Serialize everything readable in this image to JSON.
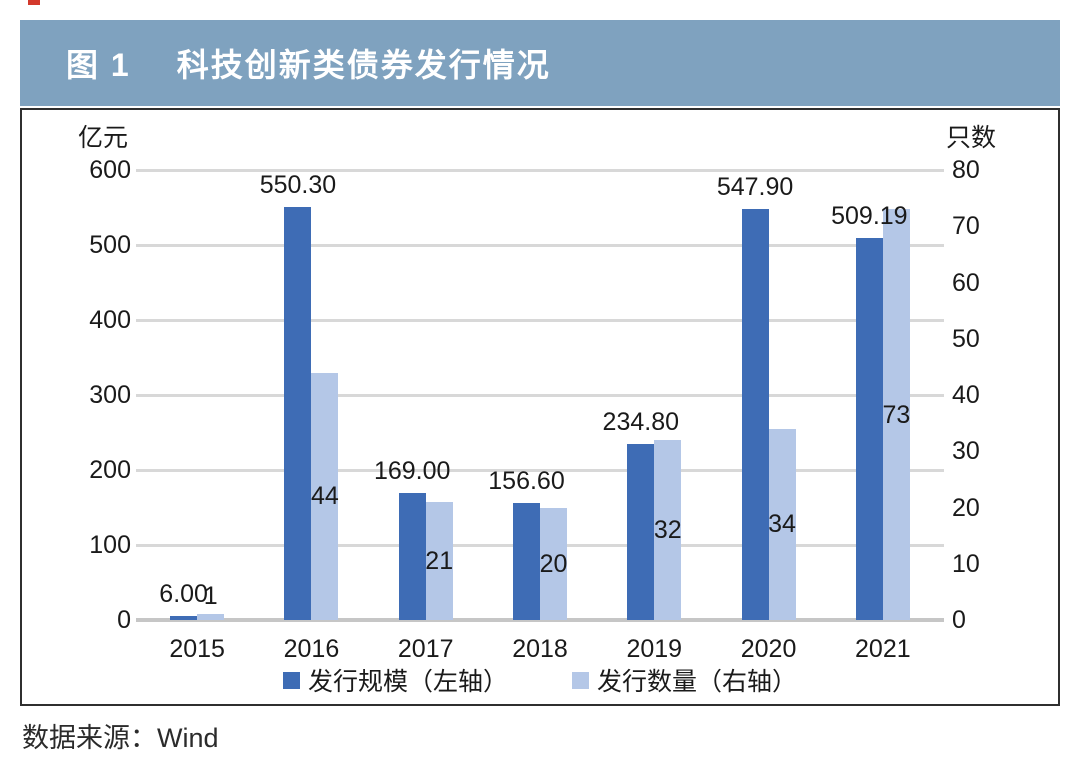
{
  "figure": {
    "label": "图 1",
    "title": "科技创新类债券发行情况",
    "header_bg": "#7fa2bf"
  },
  "source": "数据来源：Wind",
  "colors": {
    "bar_dark": "#3e6cb5",
    "bar_light": "#b4c7e7",
    "gridline": "#d8d8d8",
    "baseline": "#c6c6c6",
    "border": "#2f2f2f",
    "artifact_red": "#d3392c"
  },
  "chart_data": {
    "type": "bar",
    "categories": [
      "2015",
      "2016",
      "2017",
      "2018",
      "2019",
      "2020",
      "2021"
    ],
    "series": [
      {
        "name": "发行规模（左轴）",
        "axis": "left",
        "color": "#3e6cb5",
        "values": [
          6.0,
          550.3,
          169.0,
          156.6,
          234.8,
          547.9,
          509.19
        ],
        "labels": [
          "6.00",
          "550.30",
          "169.00",
          "156.60",
          "234.80",
          "547.90",
          "509.19"
        ]
      },
      {
        "name": "发行数量（右轴）",
        "axis": "right",
        "color": "#b4c7e7",
        "values": [
          1,
          44,
          21,
          20,
          32,
          34,
          73
        ],
        "labels": [
          "1",
          "44",
          "21",
          "20",
          "32",
          "34",
          "73"
        ]
      }
    ],
    "left_axis": {
      "title": "亿元",
      "min": 0,
      "max": 600,
      "step": 100,
      "ticks": [
        "600",
        "500",
        "400",
        "300",
        "200",
        "100",
        "0"
      ]
    },
    "right_axis": {
      "title": "只数",
      "min": 0,
      "max": 80,
      "step": 10,
      "ticks": [
        "80",
        "70",
        "60",
        "50",
        "40",
        "30",
        "20",
        "10",
        "0"
      ]
    },
    "grid": true,
    "legend_position": "bottom"
  }
}
